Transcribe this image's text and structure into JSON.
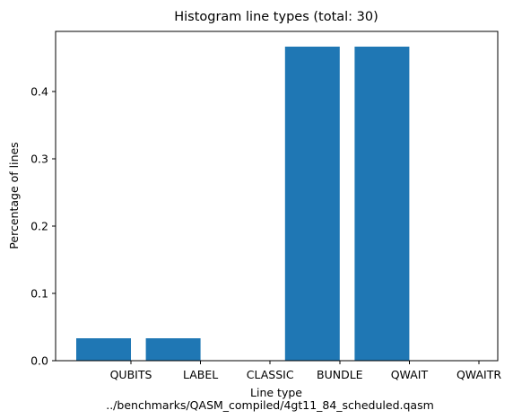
{
  "chart_data": {
    "type": "bar",
    "title": "Histogram line types (total: 30)",
    "xlabel": "Line type",
    "xlabel_sub": "../benchmarks/QASM_compiled/4gt11_84_scheduled.qasm",
    "ylabel": "Percentage of lines",
    "categories": [
      "QUBITS",
      "LABEL",
      "CLASSIC",
      "BUNDLE",
      "QWAIT",
      "QWAITR"
    ],
    "values": [
      0.0333,
      0.0333,
      0.0,
      0.4667,
      0.4667,
      0.0
    ],
    "ylim": [
      0,
      0.49
    ],
    "yticks": [
      0.0,
      0.1,
      0.2,
      0.3,
      0.4
    ],
    "ytick_labels": [
      "0.0",
      "0.1",
      "0.2",
      "0.3",
      "0.4"
    ],
    "bar_color": "#1f77b4",
    "grid": false,
    "legend": "none"
  }
}
